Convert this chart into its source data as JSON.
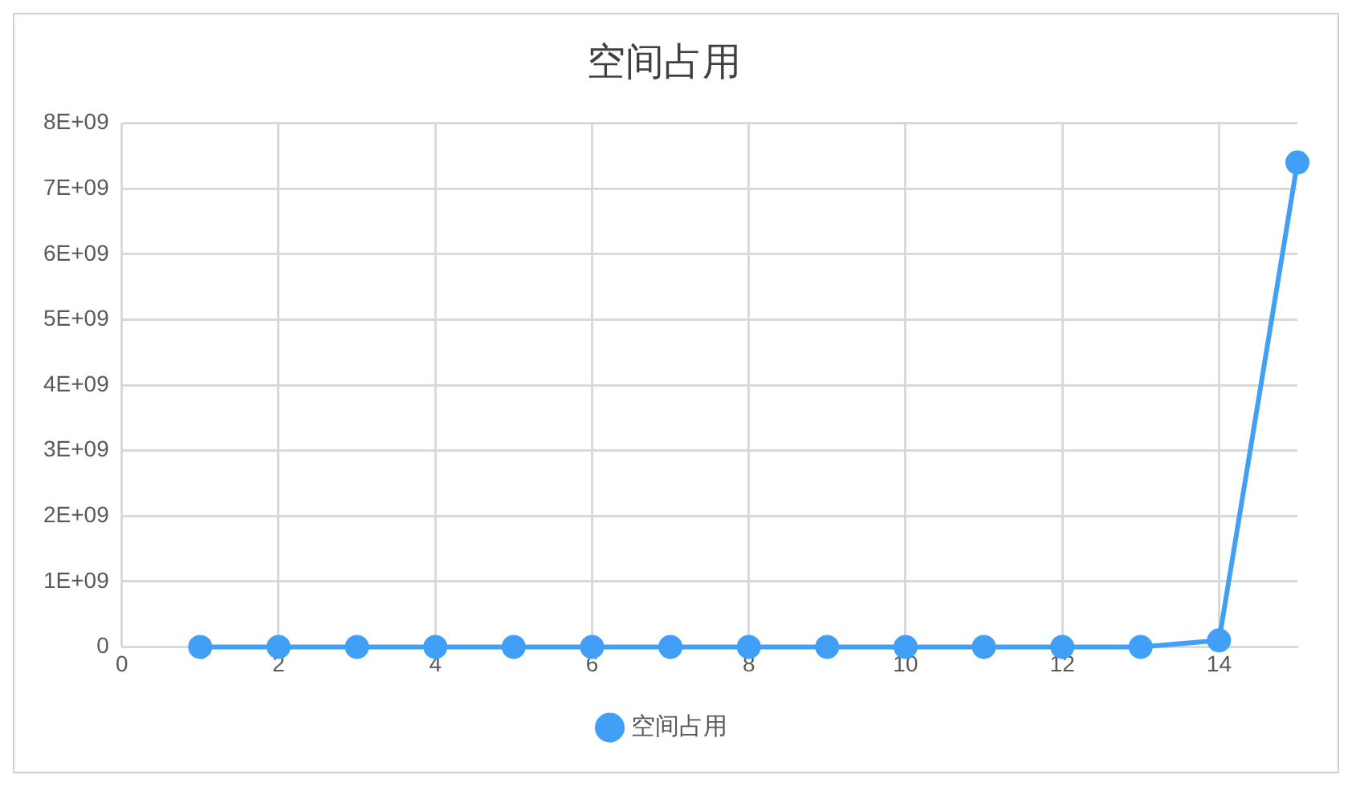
{
  "chart_data": {
    "type": "line",
    "title": "空间占用",
    "x": [
      1,
      2,
      3,
      4,
      5,
      6,
      7,
      8,
      9,
      10,
      11,
      12,
      13,
      14,
      15
    ],
    "series": [
      {
        "name": "空间占用",
        "color": "#41a0f5",
        "values": [
          0,
          0,
          0,
          0,
          0,
          0,
          0,
          0,
          0,
          0,
          0,
          0,
          0,
          100000000,
          7400000000
        ]
      }
    ],
    "xlim": [
      0,
      15
    ],
    "xticks": [
      0,
      2,
      4,
      6,
      8,
      10,
      12,
      14
    ],
    "ylim": [
      0,
      8000000000
    ],
    "yticks": [
      0,
      {
        "value": 1000000000,
        "label": "1E+09"
      },
      {
        "value": 2000000000,
        "label": "2E+09"
      },
      {
        "value": 3000000000,
        "label": "3E+09"
      },
      {
        "value": 4000000000,
        "label": "4E+09"
      },
      {
        "value": 5000000000,
        "label": "5E+09"
      },
      {
        "value": 6000000000,
        "label": "6E+09"
      },
      {
        "value": 7000000000,
        "label": "7E+09"
      },
      {
        "value": 8000000000,
        "label": "8E+09"
      }
    ],
    "grid": true,
    "legend": "bottom",
    "marker": "circle",
    "line_style": "solid"
  }
}
